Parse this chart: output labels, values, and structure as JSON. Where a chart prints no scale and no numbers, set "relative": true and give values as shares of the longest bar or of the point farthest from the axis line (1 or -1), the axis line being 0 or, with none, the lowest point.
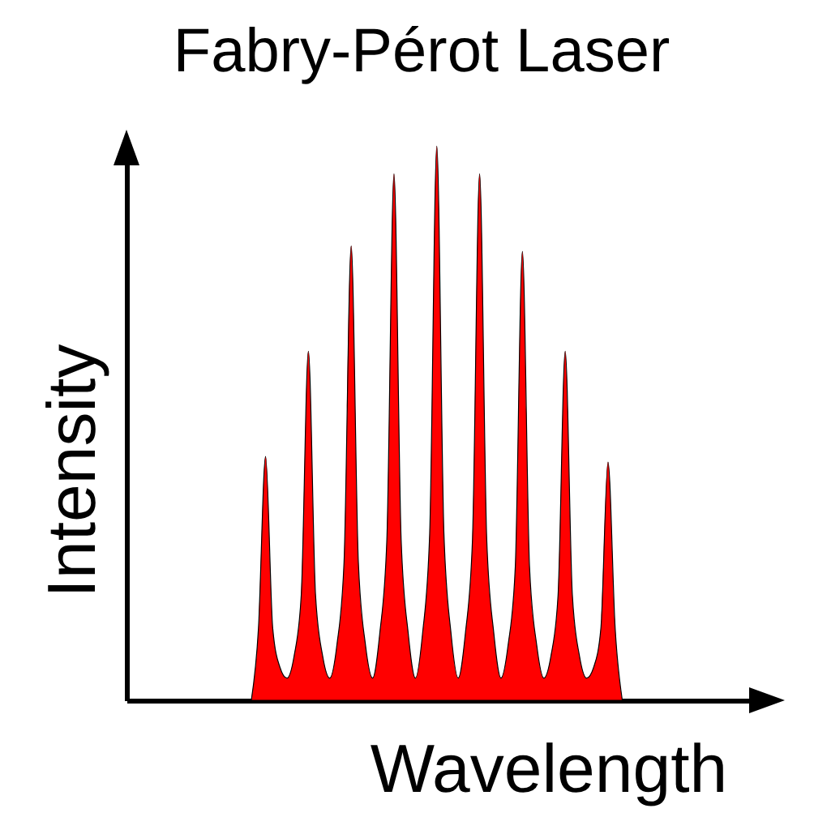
{
  "chart_data": {
    "type": "area",
    "title": "Fabry-Pérot Laser",
    "xlabel": "Wavelength",
    "ylabel": "Intensity",
    "relative": true,
    "color": "#ff0000",
    "categories": [
      null,
      null,
      null,
      null,
      null,
      null,
      null,
      null,
      null,
      null,
      null,
      null,
      null,
      null,
      null,
      null,
      null,
      null,
      null,
      null,
      null,
      null,
      null,
      null,
      null,
      null,
      null,
      null,
      null,
      null,
      null,
      null,
      null,
      null,
      null,
      null,
      null,
      null,
      null,
      null,
      null,
      null,
      null,
      null,
      null,
      null,
      null,
      null,
      null,
      null,
      null,
      null,
      null
    ],
    "values": [
      0,
      0.13,
      0.44,
      0.13,
      0.06,
      0.04,
      0.08,
      0.19,
      0.63,
      0.19,
      0.08,
      0.04,
      0.1,
      0.25,
      0.82,
      0.25,
      0.1,
      0.04,
      0.12,
      0.29,
      0.95,
      0.29,
      0.12,
      0.04,
      0.12,
      0.3,
      1,
      0.3,
      0.12,
      0.04,
      0.12,
      0.29,
      0.95,
      0.29,
      0.12,
      0.04,
      0.1,
      0.24,
      0.81,
      0.24,
      0.1,
      0.04,
      0.08,
      0.19,
      0.63,
      0.19,
      0.08,
      0.04,
      0.06,
      0.13,
      0.43,
      0.13,
      0
    ]
  }
}
